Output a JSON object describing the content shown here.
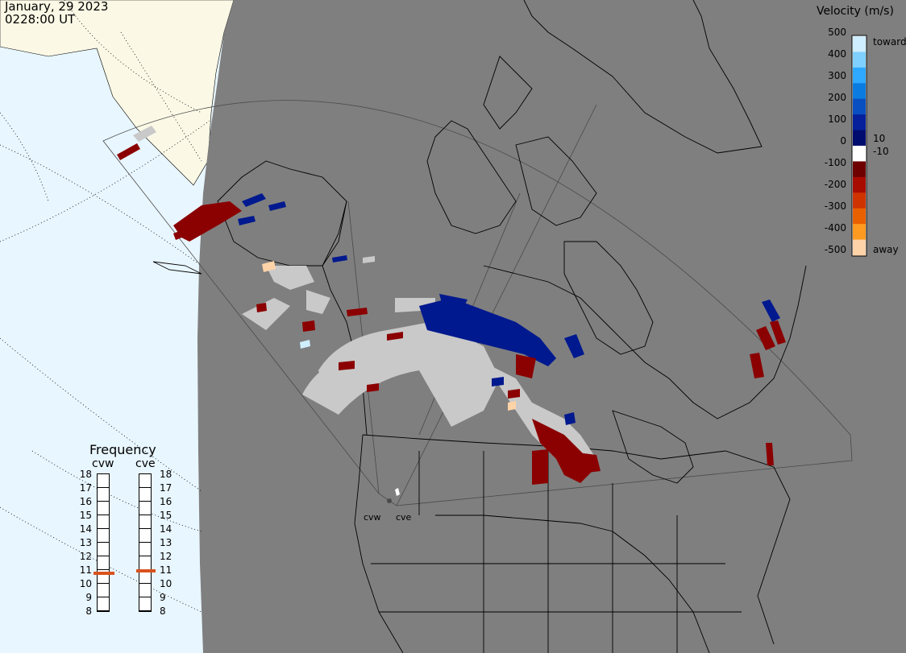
{
  "header": {
    "date": "January, 29 2023",
    "time": "0228:00 UT"
  },
  "colorbar": {
    "title": "Velocity (m/s)",
    "ticks": [
      "500",
      "400",
      "300",
      "200",
      "100",
      "0",
      "-100",
      "-200",
      "-300",
      "-400",
      "-500"
    ],
    "inner_positive": "10",
    "inner_negative": "-10",
    "toward_label": "toward",
    "away_label": "away",
    "colors": [
      "#cfeeff",
      "#7fd0ff",
      "#2fa8ff",
      "#0a7be0",
      "#0a4fc2",
      "#05209a",
      "#000d6e",
      "#ffffff",
      "#6e0000",
      "#a80b00",
      "#cf3300",
      "#e86000",
      "#ff9a20",
      "#ffd3a8"
    ]
  },
  "radars": {
    "west_label": "cvw",
    "east_label": "cve"
  },
  "frequency": {
    "title": "Frequency",
    "ticks": [
      "18",
      "17",
      "16",
      "15",
      "14",
      "13",
      "12",
      "11",
      "10",
      "9",
      "8"
    ],
    "cvw_value": 10.7,
    "cve_value": 10.9,
    "marker_color": "#d9521e"
  },
  "colors": {
    "night": "#7f7f7f",
    "day_land": "#fbf9e6",
    "day_ocean": "#e8f6ff",
    "ground_scatter": "#c9c9c9",
    "negative_velocity": "#8b0000",
    "positive_velocity": "#00198f"
  }
}
